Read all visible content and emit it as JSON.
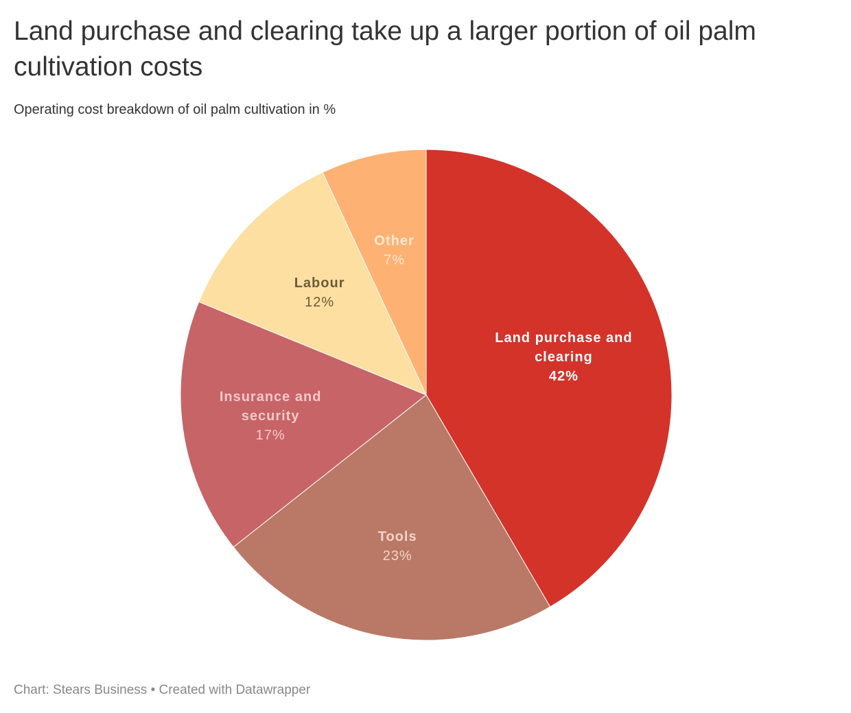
{
  "header": {
    "title": "Land purchase and clearing take up a larger portion of oil palm cultivation costs",
    "subtitle": "Operating cost breakdown of oil palm cultivation in %"
  },
  "footer": {
    "source": "Chart: Stears Business • Created with Datawrapper"
  },
  "chart_data": {
    "type": "pie",
    "title": "Land purchase and clearing take up a larger portion of oil palm cultivation costs",
    "subtitle": "Operating cost breakdown of oil palm cultivation in %",
    "unit": "%",
    "start": "12 o'clock",
    "direction": "clockwise",
    "slices": [
      {
        "label": "Land purchase and clearing",
        "label_lines": [
          "Land purchase and",
          "clearing"
        ],
        "value": 42,
        "value_label": "42%",
        "color": "#d4332a",
        "text_color": "#ffffff"
      },
      {
        "label": "Tools",
        "label_lines": [
          "Tools"
        ],
        "value": 23,
        "value_label": "23%",
        "color": "#b97966",
        "text_color": "#f3d3c8"
      },
      {
        "label": "Insurance and security",
        "label_lines": [
          "Insurance and",
          "security"
        ],
        "value": 17,
        "value_label": "17%",
        "color": "#c76468",
        "text_color": "#f6c9c9"
      },
      {
        "label": "Labour",
        "label_lines": [
          "Labour"
        ],
        "value": 12,
        "value_label": "12%",
        "color": "#fddfa2",
        "text_color": "#6e5a36"
      },
      {
        "label": "Other",
        "label_lines": [
          "Other"
        ],
        "value": 7,
        "value_label": "7%",
        "color": "#fdb273",
        "text_color": "#fde8d3"
      }
    ]
  }
}
